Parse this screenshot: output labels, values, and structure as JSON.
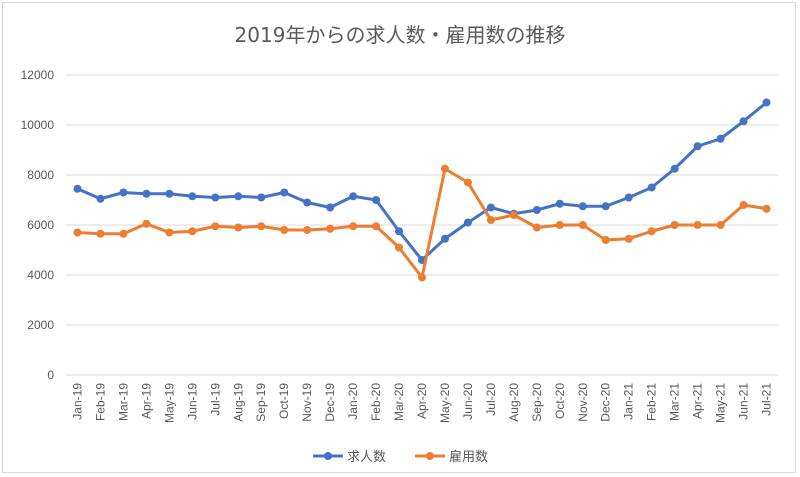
{
  "chart_data": {
    "type": "line",
    "title": "2019年からの求人数・雇用数の推移",
    "xlabel": "",
    "ylabel": "",
    "ylim": [
      0,
      12000
    ],
    "yticks": [
      0,
      2000,
      4000,
      6000,
      8000,
      10000,
      12000
    ],
    "grid": true,
    "legend_position": "bottom",
    "categories": [
      "Jan-19",
      "Feb-19",
      "Mar-19",
      "Apr-19",
      "May-19",
      "Jun-19",
      "Jul-19",
      "Aug-19",
      "Sep-19",
      "Oct-19",
      "Nov-19",
      "Dec-19",
      "Jan-20",
      "Feb-20",
      "Mar-20",
      "Apr-20",
      "May-20",
      "Jun-20",
      "Jul-20",
      "Aug-20",
      "Sep-20",
      "Oct-20",
      "Nov-20",
      "Dec-20",
      "Jan-21",
      "Feb-21",
      "Mar-21",
      "Apr-21",
      "May-21",
      "Jun-21",
      "Jul-21"
    ],
    "series": [
      {
        "name": "求人数",
        "color": "#4472c4",
        "values": [
          7450,
          7050,
          7300,
          7250,
          7250,
          7150,
          7100,
          7150,
          7100,
          7300,
          6900,
          6700,
          7150,
          7000,
          5750,
          4600,
          5450,
          6100,
          6700,
          6450,
          6600,
          6850,
          6750,
          6750,
          7100,
          7500,
          8250,
          9150,
          9450,
          10150,
          10900
        ]
      },
      {
        "name": "雇用数",
        "color": "#ed7d31",
        "values": [
          5700,
          5650,
          5650,
          6050,
          5700,
          5750,
          5950,
          5900,
          5950,
          5800,
          5800,
          5850,
          5950,
          5950,
          5100,
          3900,
          8250,
          7700,
          6200,
          6400,
          5900,
          6000,
          6000,
          5400,
          5450,
          5750,
          6000,
          6000,
          6000,
          6800,
          6650
        ]
      }
    ]
  }
}
